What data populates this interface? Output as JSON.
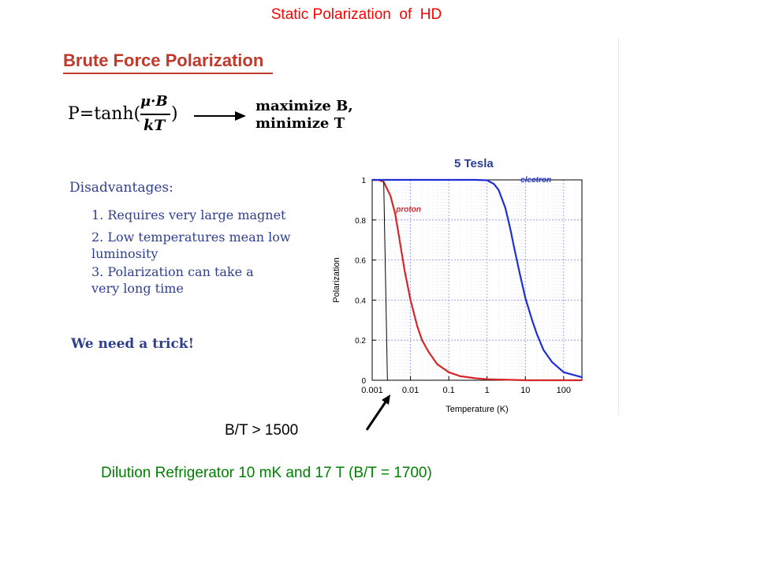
{
  "slide": {
    "title": "Static Polarization  of  HD",
    "bt_label": "B/T > 1500",
    "dilution_text": "Dilution Refrigerator 10 mK and 17 T (B/T = 1700)"
  },
  "left_panel": {
    "heading": "Brute Force Polarization",
    "formula": {
      "lhs": "P=tanh(",
      "numerator": "μ·B",
      "denominator": "kT",
      "close": ")",
      "result_line1": "maximize B,",
      "result_line2": "minimize T"
    },
    "disadvantages_title": "Disadvantages:",
    "disadvantages": [
      "1. Requires very large magnet",
      "2. Low temperatures mean low luminosity",
      "3. Polarization can take a very long time"
    ],
    "trick": "We need a trick!"
  },
  "colors": {
    "title_red": "#ff0000",
    "proton_red": "#d62728",
    "electron_blue": "#1f2fd6",
    "text_navy": "#2f3f8f",
    "green": "#008000"
  },
  "chart_data": {
    "type": "line",
    "title": "5 Tesla",
    "xlabel": "Temperature (K)",
    "ylabel": "Polarization",
    "x_scale": "log",
    "xlim": [
      0.001,
      300
    ],
    "ylim": [
      0,
      1
    ],
    "x_ticks": [
      0.001,
      0.01,
      0.1,
      1,
      10,
      100
    ],
    "x_tick_labels": [
      "0.001",
      "0.01",
      "0.1",
      "1",
      "10",
      "100"
    ],
    "y_ticks": [
      0,
      0.2,
      0.4,
      0.6,
      0.8,
      1
    ],
    "y_tick_labels": [
      "0",
      "0.2",
      "0.4",
      "0.6",
      "0.8",
      "1"
    ],
    "grid": true,
    "series": [
      {
        "name": "proton",
        "color": "#d62728",
        "x": [
          0.001,
          0.0015,
          0.002,
          0.003,
          0.004,
          0.005,
          0.007,
          0.01,
          0.015,
          0.02,
          0.03,
          0.05,
          0.1,
          0.2,
          0.5,
          1,
          10,
          300
        ],
        "y": [
          1.0,
          0.999,
          0.99,
          0.92,
          0.83,
          0.72,
          0.55,
          0.4,
          0.27,
          0.2,
          0.14,
          0.08,
          0.04,
          0.02,
          0.01,
          0.005,
          0.0,
          0.0
        ]
      },
      {
        "name": "electron",
        "color": "#1f2fd6",
        "x": [
          0.001,
          0.1,
          0.5,
          1.0,
          1.5,
          2,
          3,
          4,
          5,
          7,
          10,
          15,
          20,
          30,
          50,
          100,
          300
        ],
        "y": [
          1.0,
          1.0,
          1.0,
          0.998,
          0.98,
          0.95,
          0.86,
          0.76,
          0.67,
          0.54,
          0.41,
          0.3,
          0.23,
          0.15,
          0.09,
          0.04,
          0.015
        ]
      }
    ]
  }
}
